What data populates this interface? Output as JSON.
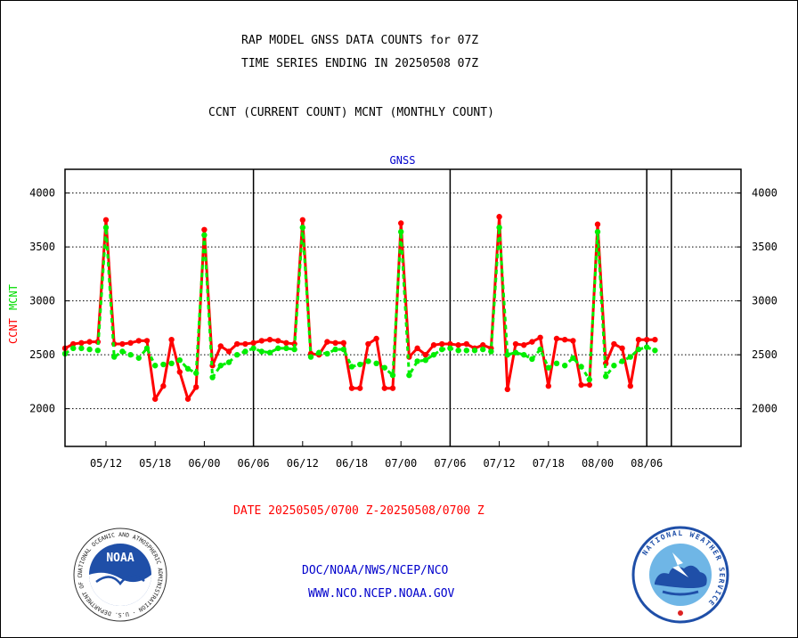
{
  "header": {
    "title_line1": "RAP MODEL GNSS DATA COUNTS for 07Z",
    "title_line2": "TIME SERIES ENDING IN 20250508 07Z",
    "subtitle": "CCNT (CURRENT COUNT) MCNT (MONTHLY COUNT)"
  },
  "footer": {
    "date_range": "DATE 20250505/0700 Z-20250508/0700 Z",
    "org_path": "DOC/NOAA/NWS/NCEP/NCO",
    "website": "WWW.NCO.NCEP.NOAA.GOV"
  },
  "logos": {
    "noaa_text": "NOAA",
    "noaa_ring_text": "NATIONAL OCEANIC AND ATMOSPHERIC ADMINISTRATION · U.S. DEPARTMENT OF COMMERCE ·",
    "nws_ring_text": "NATIONAL WEATHER SERVICE"
  },
  "colors": {
    "ccnt": "#ff0000",
    "mcnt": "#00ee00",
    "label": "#0000cc",
    "axis": "#000000"
  },
  "chart_data": {
    "type": "line",
    "title": "GNSS",
    "ylabel_left": [
      "CCNT",
      "MCNT"
    ],
    "yticks": [
      2000,
      2500,
      3000,
      3500,
      4000
    ],
    "ylim": [
      1650,
      4220
    ],
    "xlim": [
      0,
      27.5
    ],
    "x_tick_labels": [
      "05/12",
      "05/18",
      "06/00",
      "06/06",
      "06/12",
      "06/18",
      "07/00",
      "07/06",
      "07/12",
      "07/18",
      "08/00",
      "08/06"
    ],
    "x_tick_positions": [
      5,
      11,
      17,
      23,
      29,
      35,
      41,
      47,
      53,
      59,
      65,
      71
    ],
    "x_tick_scale_hours": 3,
    "day_boundaries_hours": [
      23,
      47,
      71,
      74
    ],
    "grid": "dotted horizontal",
    "legend": "left axis label",
    "series": [
      {
        "name": "CCNT",
        "x_hours": [
          0,
          1,
          2,
          3,
          4,
          5,
          6,
          7,
          8,
          9,
          10,
          11,
          12,
          13,
          14,
          15,
          16,
          17,
          18,
          19,
          20,
          21,
          22,
          23,
          24,
          25,
          26,
          27,
          28,
          29,
          30,
          31,
          32,
          33,
          34,
          35,
          36,
          37,
          38,
          39,
          40,
          41,
          42,
          43,
          44,
          45,
          46,
          47,
          48,
          49,
          50,
          51,
          52,
          53,
          54,
          55,
          56,
          57,
          58,
          59,
          60,
          61,
          62,
          63,
          64,
          65,
          66,
          67,
          68,
          69,
          70,
          71,
          72
        ],
        "values": [
          2560,
          2600,
          2610,
          2620,
          2620,
          3750,
          2600,
          2600,
          2610,
          2630,
          2630,
          2090,
          2210,
          2640,
          2340,
          2090,
          2200,
          3660,
          2400,
          2580,
          2530,
          2600,
          2600,
          2610,
          2630,
          2640,
          2630,
          2610,
          2600,
          3750,
          2510,
          2500,
          2620,
          2610,
          2610,
          2190,
          2190,
          2600,
          2650,
          2190,
          2190,
          3720,
          2480,
          2560,
          2500,
          2590,
          2600,
          2600,
          2590,
          2600,
          2560,
          2590,
          2560,
          3780,
          2180,
          2600,
          2590,
          2620,
          2660,
          2210,
          2650,
          2640,
          2630,
          2220,
          2220,
          3710,
          2420,
          2600,
          2560,
          2210,
          2640,
          2640,
          2640
        ]
      },
      {
        "name": "MCNT",
        "x_hours": [
          0,
          1,
          2,
          3,
          4,
          5,
          6,
          7,
          8,
          9,
          10,
          11,
          12,
          13,
          14,
          15,
          16,
          17,
          18,
          19,
          20,
          21,
          22,
          23,
          24,
          25,
          26,
          27,
          28,
          29,
          30,
          31,
          32,
          33,
          34,
          35,
          36,
          37,
          38,
          39,
          40,
          41,
          42,
          43,
          44,
          45,
          46,
          47,
          48,
          49,
          50,
          51,
          52,
          53,
          54,
          55,
          56,
          57,
          58,
          59,
          60,
          61,
          62,
          63,
          64,
          65,
          66,
          67,
          68,
          69,
          70,
          71,
          72
        ],
        "values": [
          2510,
          2560,
          2560,
          2550,
          2540,
          3680,
          2480,
          2530,
          2500,
          2470,
          2560,
          2400,
          2410,
          2420,
          2450,
          2370,
          2330,
          3610,
          2290,
          2400,
          2430,
          2500,
          2530,
          2560,
          2530,
          2520,
          2560,
          2560,
          2550,
          3680,
          2480,
          2520,
          2510,
          2550,
          2550,
          2390,
          2410,
          2440,
          2420,
          2380,
          2310,
          3640,
          2310,
          2440,
          2450,
          2500,
          2550,
          2560,
          2540,
          2540,
          2540,
          2550,
          2530,
          3680,
          2500,
          2520,
          2500,
          2460,
          2550,
          2380,
          2420,
          2400,
          2470,
          2390,
          2270,
          3640,
          2300,
          2400,
          2440,
          2480,
          2550,
          2570,
          2540
        ]
      }
    ]
  }
}
